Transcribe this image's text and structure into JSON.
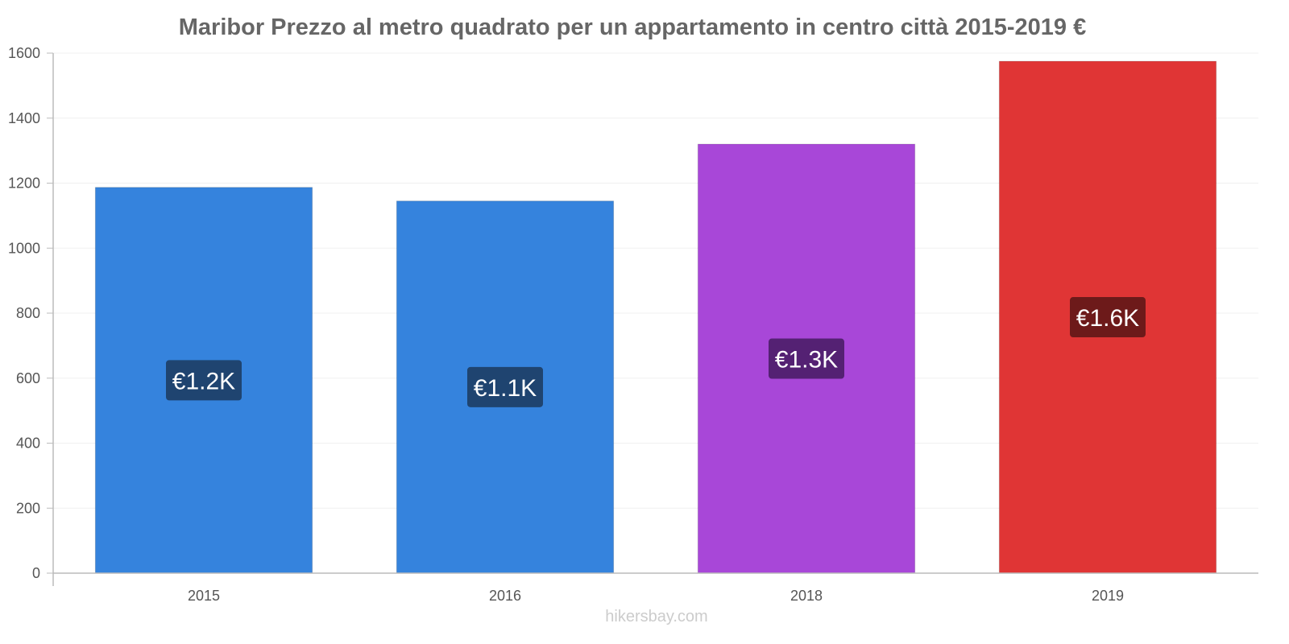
{
  "chart_data": {
    "type": "bar",
    "title": "Maribor Prezzo al metro quadrato per un appartamento in centro città 2015-2019 €",
    "xlabel": "",
    "ylabel": "",
    "categories": [
      "2015",
      "2016",
      "2018",
      "2019"
    ],
    "values": [
      1187,
      1145,
      1320,
      1575
    ],
    "data_labels": [
      "€1.2K",
      "€1.1K",
      "€1.3K",
      "€1.6K"
    ],
    "colors": [
      "#3583dd",
      "#3583dd",
      "#a847d8",
      "#e03535"
    ],
    "label_bg_colors": [
      "#1f4470",
      "#1f4470",
      "#542173",
      "#6d1a1a"
    ],
    "ylim": [
      0,
      1600
    ],
    "yticks": [
      0,
      200,
      400,
      600,
      800,
      1000,
      1200,
      1400,
      1600
    ],
    "grid": true,
    "legend": "none"
  },
  "watermark": "hikersbay.com"
}
